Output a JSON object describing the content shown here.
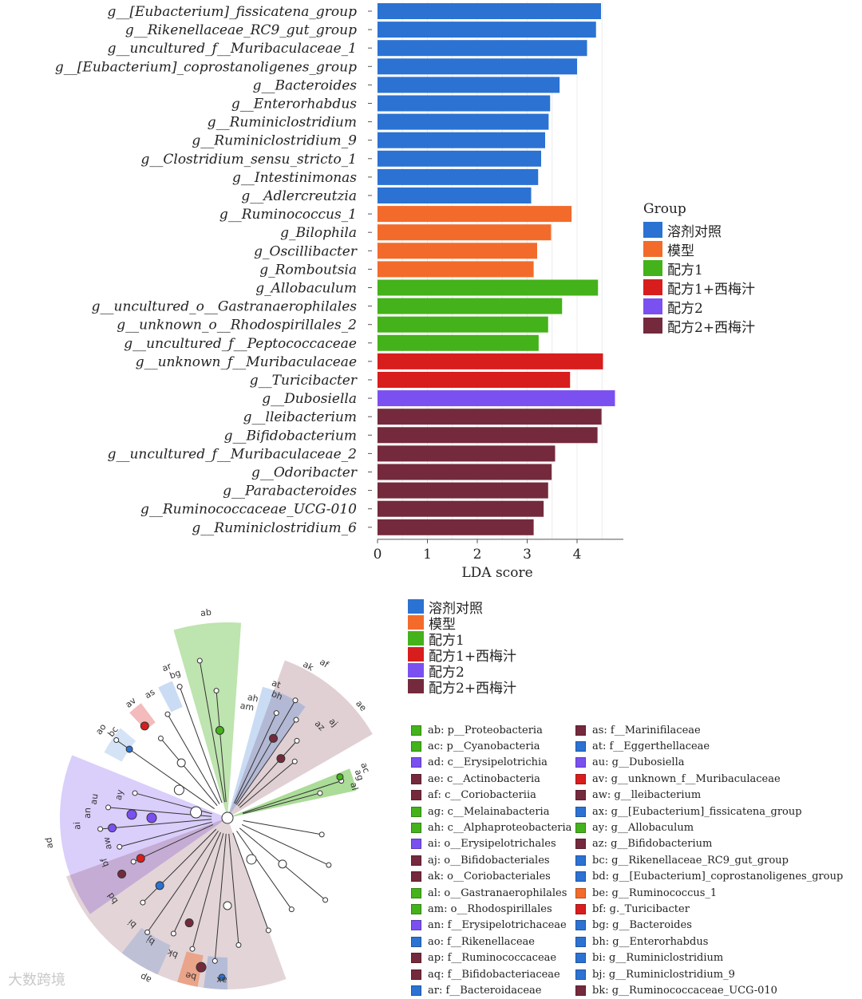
{
  "chart_data": [
    {
      "type": "bar",
      "orientation": "horizontal",
      "xlabel": "LDA score",
      "xlim": [
        0,
        4.8
      ],
      "xticks": [
        0,
        1,
        2,
        3,
        4
      ],
      "grid": true,
      "legend_placement": "right",
      "categories": [
        "g__[Eubacterium]_fissicatena_group",
        "g__Rikenellaceae_RC9_gut_group",
        "g__uncultured_f__Muribaculaceae_1",
        "g__[Eubacterium]_coprostanoligenes_group",
        "g__Bacteroides",
        "g__Enterorhabdus",
        "g__Ruminiclostridium",
        "g__Ruminiclostridium_9",
        "g__Clostridium_sensu_stricto_1",
        "g__Intestinimonas",
        "g__Adlercreutzia",
        "g__Ruminococcus_1",
        "g_Bilophila",
        "g_Oscillibacter",
        "g_Romboutsia",
        "g_Allobaculum",
        "g__uncultured_o__Gastranaerophilales",
        "g__unknown_o__Rhodospirillales_2",
        "g__uncultured_f__Peptococcaceae",
        "g__unknown_f__Muribaculaceae",
        "g__Turicibacter",
        "g__Dubosiella",
        "g__lleibacterium",
        "g__Bifidobacterium",
        "g__uncultured_f__Muribaculaceae_2",
        "g__Odoribacter",
        "g__Parabacteroides",
        "g__Ruminococcaceae_UCG-010",
        "g__Ruminiclostridium_6"
      ],
      "values": [
        4.48,
        4.38,
        4.2,
        4.0,
        3.65,
        3.46,
        3.43,
        3.36,
        3.28,
        3.22,
        3.08,
        3.89,
        3.48,
        3.2,
        3.13,
        4.42,
        3.7,
        3.42,
        3.23,
        4.52,
        3.86,
        4.76,
        4.49,
        4.41,
        3.56,
        3.49,
        3.42,
        3.33,
        3.13
      ],
      "groups": [
        0,
        0,
        0,
        0,
        0,
        0,
        0,
        0,
        0,
        0,
        0,
        1,
        1,
        1,
        1,
        2,
        2,
        2,
        2,
        3,
        3,
        4,
        5,
        5,
        5,
        5,
        5,
        5,
        5
      ],
      "legend_title": "Group",
      "series": [
        {
          "name": "溶剂对照",
          "color": "#2b72d2"
        },
        {
          "name": "模型",
          "color": "#f26b2b"
        },
        {
          "name": "配方1",
          "color": "#44b21a"
        },
        {
          "name": "配方1+西梅汁",
          "color": "#d81d1d"
        },
        {
          "name": "配方2",
          "color": "#7a50f0"
        },
        {
          "name": "配方2+西梅汁",
          "color": "#742a3c"
        }
      ]
    },
    {
      "type": "cladogram",
      "legend": [
        "溶剂对照",
        "模型",
        "配方1",
        "配方1+西梅汁",
        "配方2",
        "配方2+西梅汁"
      ],
      "sector_labels": [
        "ab",
        "af",
        "ak",
        "ae",
        "ah",
        "am",
        "at",
        "bh",
        "az",
        "aj",
        "ag",
        "al",
        "ac",
        "ar",
        "bg",
        "as",
        "av",
        "ao",
        "bc",
        "ay",
        "au",
        "an",
        "ai",
        "ad",
        "aw",
        "bf",
        "bd",
        "bi",
        "bj",
        "bk",
        "ap",
        "be",
        "ax",
        "aq",
        "aa"
      ],
      "key_left": [
        {
          "code": "ab",
          "text": "ab: p__Proteobacteria",
          "group": 2
        },
        {
          "code": "ac",
          "text": "ac: p__Cyanobacteria",
          "group": 2
        },
        {
          "code": "ad",
          "text": "ad: c__Erysipelotrichia",
          "group": 4
        },
        {
          "code": "ae",
          "text": "ae: c__Actinobacteria",
          "group": 5
        },
        {
          "code": "af",
          "text": "af: c__Coriobacteriia",
          "group": 5
        },
        {
          "code": "ag",
          "text": "ag: c__Melainabacteria",
          "group": 2
        },
        {
          "code": "ah",
          "text": "ah: c__Alphaproteobacteria",
          "group": 2
        },
        {
          "code": "ai",
          "text": "ai: o__Erysipelotrichales",
          "group": 4
        },
        {
          "code": "aj",
          "text": "aj: o__Bifidobacteriales",
          "group": 5
        },
        {
          "code": "ak",
          "text": "ak: o__Coriobacteriales",
          "group": 5
        },
        {
          "code": "al",
          "text": "al: o__Gastranaerophilales",
          "group": 2
        },
        {
          "code": "am",
          "text": "am: o__Rhodospirillales",
          "group": 2
        },
        {
          "code": "an",
          "text": "an: f__Erysipelotrichaceae",
          "group": 4
        },
        {
          "code": "ao",
          "text": "ao: f__Rikenellaceae",
          "group": 0
        },
        {
          "code": "ap",
          "text": "ap: f__Ruminococcaceae",
          "group": 5
        },
        {
          "code": "aq",
          "text": "aq: f__Bifidobacteriaceae",
          "group": 5
        },
        {
          "code": "ar",
          "text": "ar: f__Bacteroidaceae",
          "group": 0
        }
      ],
      "key_right": [
        {
          "code": "as",
          "text": "as: f__Marinifilaceae",
          "group": 5
        },
        {
          "code": "at",
          "text": "at: f__Eggerthellaceae",
          "group": 0
        },
        {
          "code": "au",
          "text": "au: g__Dubosiella",
          "group": 4
        },
        {
          "code": "av",
          "text": "av: g__unknown_f__Muribaculaceae",
          "group": 3
        },
        {
          "code": "aw",
          "text": "aw: g__lleibacterium",
          "group": 5
        },
        {
          "code": "ax",
          "text": "ax: g__[Eubacterium]_fissicatena_group",
          "group": 0
        },
        {
          "code": "ay",
          "text": "ay: g__Allobaculum",
          "group": 2
        },
        {
          "code": "az",
          "text": "az: g__Bifidobacterium",
          "group": 5
        },
        {
          "code": "bc",
          "text": "bc: g__Rikenellaceae_RC9_gut_group",
          "group": 0
        },
        {
          "code": "bd",
          "text": "bd: g__[Eubacterium]_coprostanoligenes_group",
          "group": 0
        },
        {
          "code": "be",
          "text": "be: g__Ruminococcus_1",
          "group": 1
        },
        {
          "code": "bf",
          "text": "bf: g._Turicibacter",
          "group": 3
        },
        {
          "code": "bg",
          "text": "bg: g__Bacteroides",
          "group": 0
        },
        {
          "code": "bh",
          "text": "bh: g__Enterorhabdus",
          "group": 0
        },
        {
          "code": "bi",
          "text": "bi: g__Ruminiclostridium",
          "group": 0
        },
        {
          "code": "bj",
          "text": "bj: g__Ruminiclostridium_9",
          "group": 0
        },
        {
          "code": "bk",
          "text": "bk: g__Ruminococcaceae_UCG-010",
          "group": 5
        }
      ]
    }
  ],
  "watermark": "大数跨境"
}
